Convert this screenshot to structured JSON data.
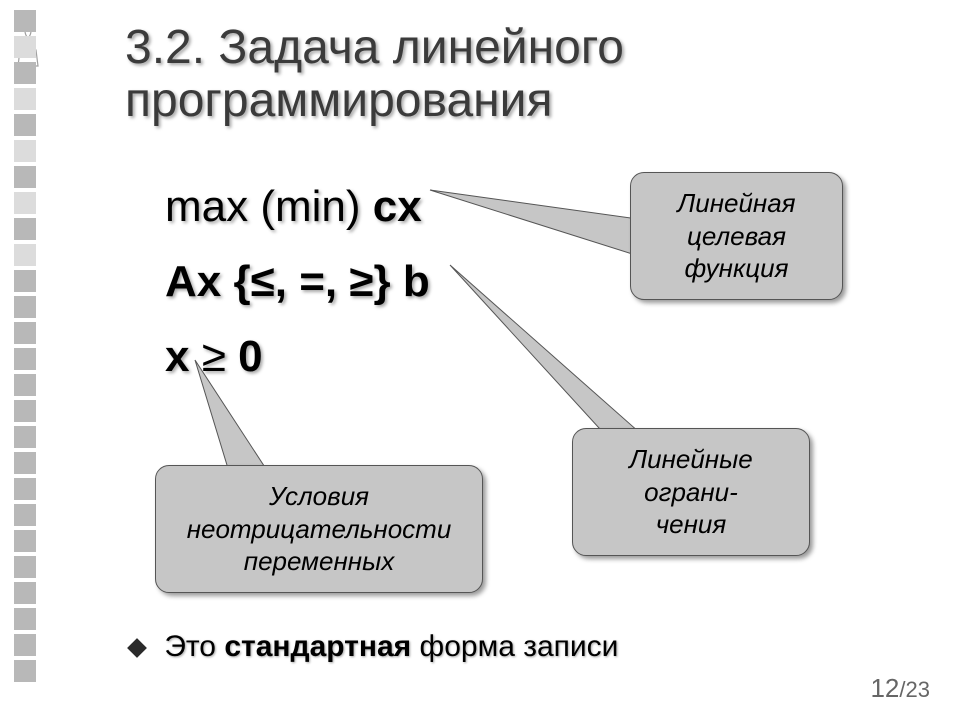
{
  "colors": {
    "text": "#000000",
    "title": "#3b3b3b",
    "callout_bg": "#c6c6c6",
    "callout_border": "#555555",
    "square_gray": "#b8b8b8",
    "pagenum": "#666666",
    "diamond": "#2a2a2a"
  },
  "side_decoration": {
    "count": 26,
    "color": "#b8b8b8",
    "alt_color": "#dcdcdc",
    "alt_indices": [
      1,
      3,
      5,
      7,
      9
    ]
  },
  "title": "3.2. Задача линейного программирования",
  "formulas": {
    "line1_prefix": "max (min) ",
    "line1_c": "c",
    "line1_x": "x",
    "line2_A": "A",
    "line2_x": "x",
    "line2_mid": " {≤, =, ≥} ",
    "line2_b": "b",
    "line3_x": "x",
    "line3_rest": " ≥ ",
    "line3_zero": "0"
  },
  "callouts": {
    "objective": {
      "line1": "Линейная",
      "line2": "целевая",
      "line3": "функция"
    },
    "constraints": {
      "line1": "Линейные",
      "line2": "ограни-",
      "line3": "чения"
    },
    "nonneg": {
      "line1": "Условия",
      "line2": "неотрицательности",
      "line3": "переменных"
    }
  },
  "bullet": {
    "before": "Это ",
    "bold": "стандартная",
    "after": " форма записи"
  },
  "page": {
    "current": "12",
    "sep": "/",
    "total": "23"
  }
}
